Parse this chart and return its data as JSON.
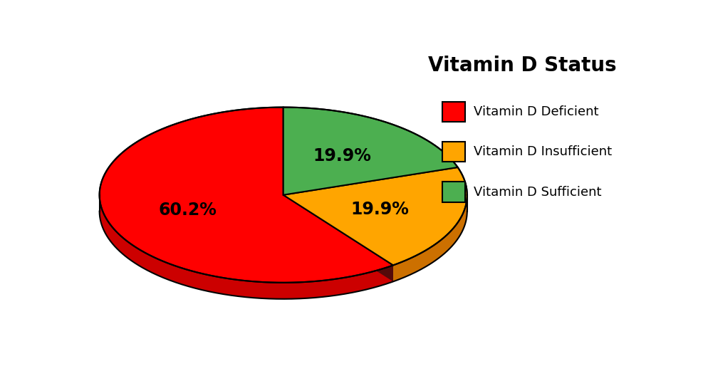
{
  "title": "Vitamin D Status",
  "slices": [
    60.2,
    19.9,
    19.9
  ],
  "labels": [
    "60.2%",
    "19.9%",
    "19.9%"
  ],
  "colors": [
    "#FF0000",
    "#FFA500",
    "#4CAF50"
  ],
  "shadow_colors": [
    "#CC0000",
    "#CC7000",
    "#2E8B2E"
  ],
  "legend_labels": [
    "Vitamin D Deficient",
    "Vitamin D Insufficient",
    "Vitamin D Sufficient"
  ],
  "background_color": "#FFFFFF",
  "title_fontsize": 20,
  "label_fontsize": 17
}
